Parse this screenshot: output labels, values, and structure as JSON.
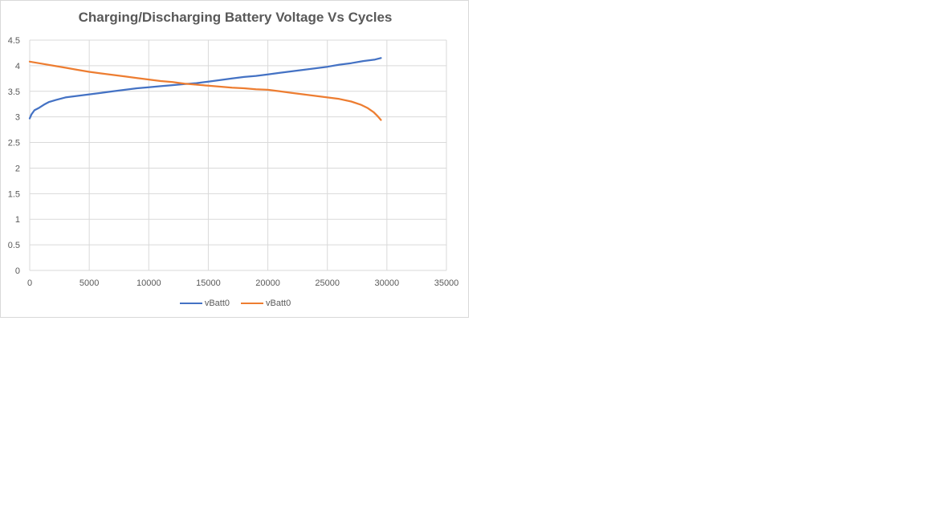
{
  "chart_data": {
    "type": "line",
    "title": "Charging/Discharging Battery Voltage Vs Cycles",
    "xlabel": "",
    "ylabel": "",
    "xlim": [
      0,
      35000
    ],
    "ylim": [
      0,
      4.5
    ],
    "x_ticks": [
      "0",
      "5000",
      "10000",
      "15000",
      "20000",
      "25000",
      "30000",
      "35000"
    ],
    "y_ticks": [
      "0",
      "0.5",
      "1",
      "1.5",
      "2",
      "2.5",
      "3",
      "3.5",
      "4",
      "4.5"
    ],
    "grid": true,
    "legend_position": "bottom",
    "series": [
      {
        "name": "vBatt0",
        "color": "#4472c4",
        "points": [
          [
            0,
            2.97
          ],
          [
            150,
            3.05
          ],
          [
            400,
            3.13
          ],
          [
            800,
            3.18
          ],
          [
            1200,
            3.24
          ],
          [
            1600,
            3.29
          ],
          [
            2200,
            3.33
          ],
          [
            3000,
            3.38
          ],
          [
            4000,
            3.41
          ],
          [
            5000,
            3.44
          ],
          [
            6000,
            3.47
          ],
          [
            7000,
            3.5
          ],
          [
            8000,
            3.53
          ],
          [
            9000,
            3.56
          ],
          [
            10000,
            3.58
          ],
          [
            11000,
            3.6
          ],
          [
            12000,
            3.62
          ],
          [
            13000,
            3.64
          ],
          [
            14000,
            3.66
          ],
          [
            15000,
            3.69
          ],
          [
            16000,
            3.72
          ],
          [
            17000,
            3.75
          ],
          [
            18000,
            3.78
          ],
          [
            19000,
            3.8
          ],
          [
            20000,
            3.83
          ],
          [
            21000,
            3.86
          ],
          [
            22000,
            3.89
          ],
          [
            23000,
            3.92
          ],
          [
            24000,
            3.95
          ],
          [
            25000,
            3.98
          ],
          [
            26000,
            4.02
          ],
          [
            27000,
            4.05
          ],
          [
            28000,
            4.09
          ],
          [
            29000,
            4.12
          ],
          [
            29500,
            4.15
          ]
        ]
      },
      {
        "name": "vBatt0",
        "color": "#ed7d31",
        "points": [
          [
            0,
            4.08
          ],
          [
            1000,
            4.04
          ],
          [
            2000,
            4.0
          ],
          [
            3000,
            3.96
          ],
          [
            4000,
            3.92
          ],
          [
            5000,
            3.88
          ],
          [
            6000,
            3.85
          ],
          [
            7000,
            3.82
          ],
          [
            8000,
            3.79
          ],
          [
            9000,
            3.76
          ],
          [
            10000,
            3.73
          ],
          [
            11000,
            3.7
          ],
          [
            12000,
            3.68
          ],
          [
            13000,
            3.65
          ],
          [
            14000,
            3.63
          ],
          [
            15000,
            3.61
          ],
          [
            16000,
            3.59
          ],
          [
            17000,
            3.57
          ],
          [
            18000,
            3.56
          ],
          [
            19000,
            3.54
          ],
          [
            20000,
            3.53
          ],
          [
            21000,
            3.5
          ],
          [
            22000,
            3.47
          ],
          [
            23000,
            3.44
          ],
          [
            24000,
            3.41
          ],
          [
            25000,
            3.38
          ],
          [
            26000,
            3.35
          ],
          [
            27000,
            3.3
          ],
          [
            27800,
            3.24
          ],
          [
            28400,
            3.17
          ],
          [
            28900,
            3.09
          ],
          [
            29200,
            3.02
          ],
          [
            29500,
            2.94
          ]
        ]
      }
    ]
  }
}
